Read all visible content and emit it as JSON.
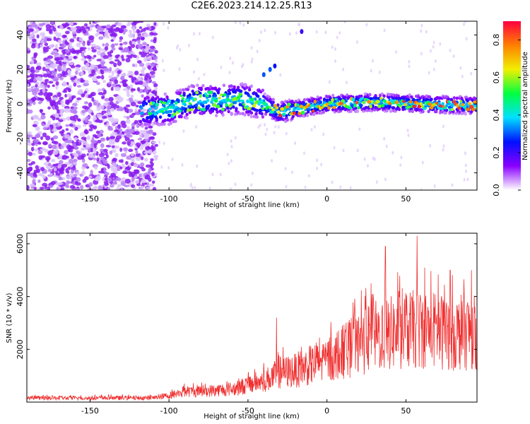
{
  "title": "C2E6.2023.214.12.25.R13",
  "chart_data": [
    {
      "type": "heatmap",
      "xlabel": "Height of straight line (km)",
      "ylabel": "Frequency (Hz)",
      "xlim": [
        -190,
        95
      ],
      "ylim": [
        -50,
        48
      ],
      "xticks": [
        -150,
        -100,
        -50,
        0,
        50
      ],
      "yticks": [
        -40,
        -20,
        0,
        20,
        40
      ],
      "colorbar": {
        "label": "Normalized spectral amplitude",
        "range": [
          0,
          0.9
        ],
        "ticks": [
          0.0,
          0.2,
          0.4,
          0.6,
          0.8
        ],
        "colors": [
          "#ffffff",
          "#8a00ff",
          "#0010ff",
          "#00e0ff",
          "#00ff40",
          "#f0f000",
          "#ff8000",
          "#ff0040"
        ]
      },
      "regions": [
        {
          "name": "noise",
          "x_range": [
            -190,
            -108
          ],
          "freq_range": [
            -50,
            48
          ],
          "amplitude": 0.1
        },
        {
          "name": "signal-band",
          "x_range": [
            -118,
            95
          ],
          "freq_center": [
            [
              -118,
              -4
            ],
            [
              -100,
              -3
            ],
            [
              -85,
              2
            ],
            [
              -70,
              2
            ],
            [
              -55,
              3
            ],
            [
              -40,
              0
            ],
            [
              -30,
              -5
            ],
            [
              -20,
              -3
            ],
            [
              0,
              0
            ],
            [
              30,
              1
            ],
            [
              60,
              0
            ],
            [
              95,
              -1
            ]
          ],
          "amplitude": 0.55
        }
      ],
      "grid": false
    },
    {
      "type": "line",
      "xlabel": "Height of straight line (km)",
      "ylabel": "SNR (10 * v/v)",
      "xlim": [
        -190,
        95
      ],
      "ylim": [
        0,
        6400
      ],
      "xticks": [
        -150,
        -100,
        -50,
        0,
        50
      ],
      "yticks": [
        2000,
        4000,
        6000
      ],
      "series_color": "#f03030",
      "envelope": {
        "x": [
          -190,
          -150,
          -110,
          -100,
          -90,
          -80,
          -60,
          -40,
          -30,
          -20,
          -10,
          0,
          10,
          20,
          30,
          40,
          50,
          60,
          70,
          80,
          95
        ],
        "y": [
          150,
          150,
          160,
          250,
          400,
          400,
          500,
          800,
          1100,
          1200,
          1400,
          1600,
          1900,
          2200,
          2500,
          2600,
          2700,
          2800,
          2700,
          2600,
          2700
        ]
      },
      "peaks": [
        {
          "x": -32,
          "y": 3200
        },
        {
          "x": 28,
          "y": 4500
        },
        {
          "x": 37,
          "y": 5900
        },
        {
          "x": 57,
          "y": 6300
        },
        {
          "x": 78,
          "y": 5000
        }
      ],
      "grid": false
    }
  ]
}
